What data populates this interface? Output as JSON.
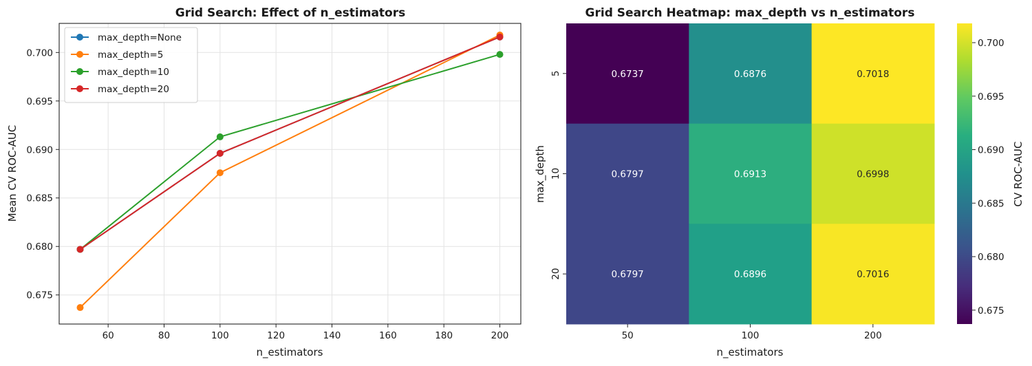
{
  "chart_data": [
    {
      "type": "line",
      "title": "Grid Search: Effect of n_estimators",
      "xlabel": "n_estimators",
      "ylabel": "Mean CV ROC-AUC",
      "xlim": [
        42.5,
        207.5
      ],
      "ylim": [
        0.672,
        0.703
      ],
      "xticks": [
        60,
        80,
        100,
        120,
        140,
        160,
        180,
        200
      ],
      "yticks": [
        0.675,
        0.68,
        0.685,
        0.69,
        0.695,
        0.7
      ],
      "ytick_labels": [
        "0.675",
        "0.680",
        "0.685",
        "0.690",
        "0.695",
        "0.700"
      ],
      "grid": true,
      "legend_position": "upper-left",
      "x": [
        50,
        100,
        200
      ],
      "series": [
        {
          "name": "max_depth=None",
          "color": "#1f77b4",
          "values": [
            0.6797,
            0.6896,
            0.7016
          ]
        },
        {
          "name": "max_depth=5",
          "color": "#ff7f0e",
          "values": [
            0.6737,
            0.6876,
            0.7018
          ]
        },
        {
          "name": "max_depth=10",
          "color": "#2ca02c",
          "values": [
            0.6797,
            0.6913,
            0.6998
          ]
        },
        {
          "name": "max_depth=20",
          "color": "#d62728",
          "values": [
            0.6797,
            0.6896,
            0.7016
          ]
        }
      ]
    },
    {
      "type": "heatmap",
      "title": "Grid Search Heatmap: max_depth vs n_estimators",
      "xlabel": "n_estimators",
      "ylabel": "max_depth",
      "x_categories": [
        "50",
        "100",
        "200"
      ],
      "y_categories": [
        "5",
        "10",
        "20"
      ],
      "values": [
        [
          0.6737,
          0.6876,
          0.7018
        ],
        [
          0.6797,
          0.6913,
          0.6998
        ],
        [
          0.6797,
          0.6896,
          0.7016
        ]
      ],
      "value_labels": [
        [
          "0.6737",
          "0.6876",
          "0.7018"
        ],
        [
          "0.6797",
          "0.6913",
          "0.6998"
        ],
        [
          "0.6797",
          "0.6896",
          "0.7016"
        ]
      ],
      "colormap": "viridis",
      "colorbar_label": "CV ROC-AUC",
      "vmin": 0.6737,
      "vmax": 0.7018,
      "colorbar_ticks": [
        0.675,
        0.68,
        0.685,
        0.69,
        0.695,
        0.7
      ],
      "colorbar_tick_labels": [
        "0.675",
        "0.680",
        "0.685",
        "0.690",
        "0.695",
        "0.700"
      ]
    }
  ]
}
